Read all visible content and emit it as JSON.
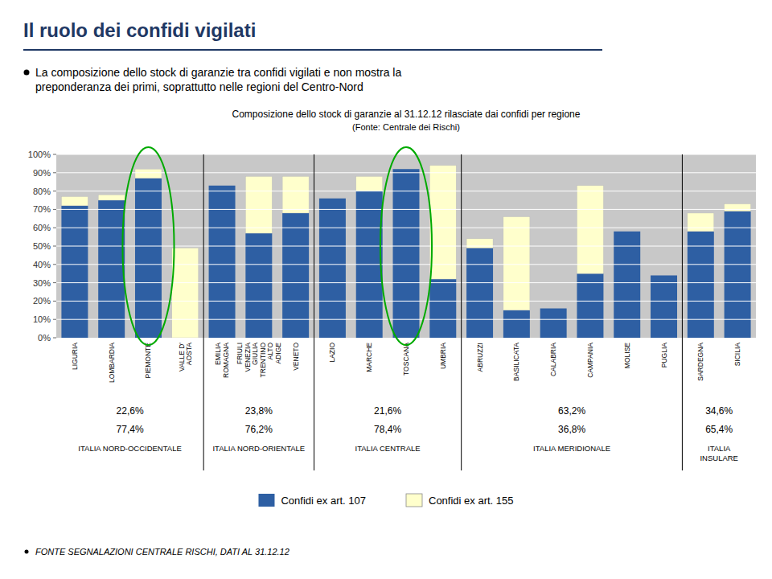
{
  "slide_title": "Il ruolo dei confidi vigilati",
  "bullet_text": "La composizione dello stock di garanzie tra confidi vigilati e non mostra la\npreponderanza dei primi, soprattutto nelle regioni del Centro-Nord",
  "footer": "FONTE SEGNALAZIONI CENTRALE RISCHI, DATI AL 31.12.12",
  "chart_data": {
    "type": "bar",
    "stacked": true,
    "title": "Composizione dello stock di garanzie al 31.12.12 rilasciate dai confidi per regione",
    "subtitle": "(Fonte: Centrale dei Rischi)",
    "categories": [
      "LIGURIA",
      "LOMBARDIA",
      "PIEMONTE",
      "VALLE D'\nAOSTA",
      "EMILIA\nROMAGNA",
      "FRIULI\nVENEZIA\nGIULIA\nTRENTINO\nALTO\nADIGE",
      "VENETO",
      "LAZIO",
      "MARCHE",
      "TOSCANA",
      "UMBRIA",
      "ABRUZZI",
      "BASILICATA",
      "CALABRIA",
      "CAMPANIA",
      "MOLISE",
      "PUGLIA",
      "SARDEGNA",
      "SICILIA"
    ],
    "series": [
      {
        "name": "Confidi ex art. 107",
        "color": "#2E5FA3",
        "values": [
          72,
          75,
          87,
          0,
          83,
          57,
          68,
          76,
          80,
          92,
          32,
          49,
          15,
          16,
          35,
          58,
          34,
          58,
          69
        ]
      },
      {
        "name": "Confidi ex art. 155",
        "color": "#FFFFCC",
        "values": [
          5,
          3,
          5,
          49,
          0,
          31,
          20,
          0,
          8,
          0,
          62,
          5,
          51,
          0,
          48,
          0,
          0,
          10,
          4
        ]
      }
    ],
    "color": "#C8C8C8",
    "ylim": [
      0,
      100
    ],
    "yticks": [
      {
        "value": 0,
        "label": "0%"
      },
      {
        "value": 10,
        "label": "10%"
      },
      {
        "value": 20,
        "label": "20%"
      },
      {
        "value": 30,
        "label": "30%"
      },
      {
        "value": 40,
        "label": "40%"
      },
      {
        "value": 50,
        "label": "50%"
      },
      {
        "value": 60,
        "label": "60%"
      },
      {
        "value": 70,
        "label": "70%"
      },
      {
        "value": 80,
        "label": "80%"
      },
      {
        "value": 90,
        "label": "90%"
      },
      {
        "value": 100,
        "label": "100%"
      }
    ],
    "grid": true,
    "legend": "bottom",
    "highlight": [
      "PIEMONTE",
      "TOSCANA"
    ],
    "groups": [
      {
        "start": 0,
        "end": 3,
        "art107": "22,6%",
        "art155": "77,4%",
        "label": "ITALIA NORD-OCCIDENTALE"
      },
      {
        "start": 4,
        "end": 6,
        "art107": "23,8%",
        "art155": "76,2%",
        "label": "ITALIA NORD-ORIENTALE"
      },
      {
        "start": 7,
        "end": 10,
        "art107": "21,6%",
        "art155": "78,4%",
        "label": "ITALIA CENTRALE"
      },
      {
        "start": 11,
        "end": 16,
        "art107": "63,2%",
        "art155": "36,8%",
        "label": "ITALIA MERIDIONALE"
      },
      {
        "start": 17,
        "end": 18,
        "art107": "34,6%",
        "art155": "65,4%",
        "label": "ITALIA\nINSULARE"
      }
    ]
  }
}
